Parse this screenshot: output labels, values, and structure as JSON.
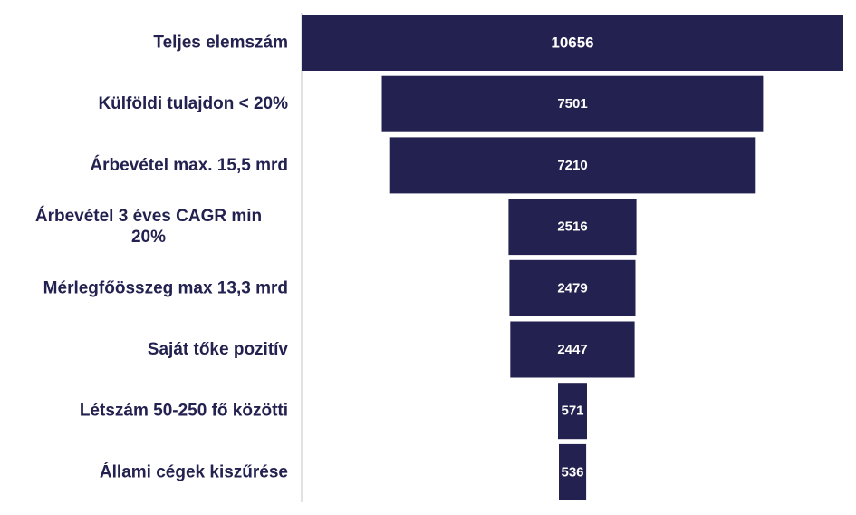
{
  "chart_data": {
    "type": "bar",
    "orientation": "horizontal-funnel",
    "title": "",
    "xlabel": "",
    "ylabel": "",
    "categories": [
      "Teljes elemszám",
      "Külföldi tulajdon < 20%",
      "Árbevétel max. 15,5 mrd",
      "Árbevétel 3 éves CAGR min 20%",
      "Mérlegfőösszeg max 13,3 mrd",
      "Saját tőke pozitív",
      "Létszám 50-250 fő közötti",
      "Állami cégek kiszűrése"
    ],
    "category_lines": [
      [
        "Teljes elemszám"
      ],
      [
        "Külföldi tulajdon < 20%"
      ],
      [
        "Árbevétel max. 15,5 mrd"
      ],
      [
        "Árbevétel 3 éves CAGR min",
        "20%"
      ],
      [
        "Mérlegfőösszeg max 13,3 mrd"
      ],
      [
        "Saját tőke pozitív"
      ],
      [
        "Létszám 50-250 fő közötti"
      ],
      [
        "Állami cégek kiszűrése"
      ]
    ],
    "values": [
      10656,
      7501,
      7210,
      2516,
      2479,
      2447,
      571,
      536
    ],
    "xlim": [
      0,
      10656
    ],
    "grid": false,
    "legend": "none",
    "bar_color": "#23214f",
    "label_color": "#22214f",
    "value_label_color": "#ffffff",
    "axis_color": "#d9d9d9"
  }
}
